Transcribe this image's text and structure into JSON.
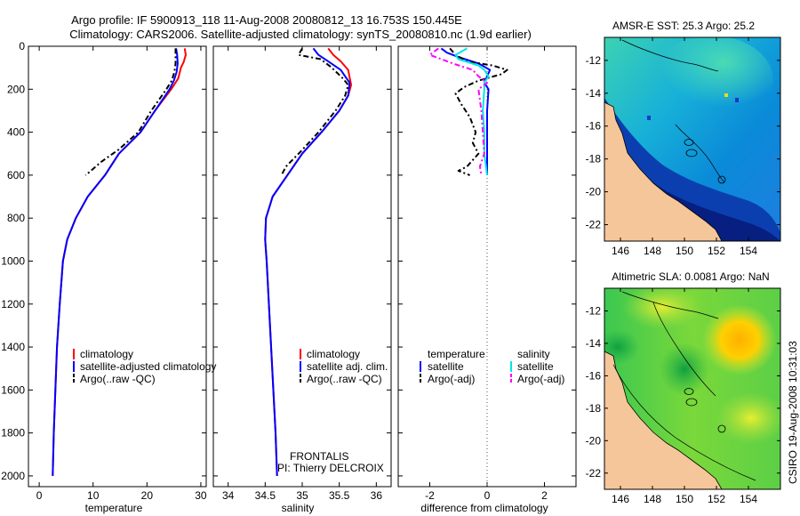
{
  "title_line1": "Argo profile: IF 5900913_118 11-Aug-2008 20080812_13 16.753S 150.445E",
  "title_line2": "Climatology: CARS2006. Satellite-adjusted climatology: synTS_20080810.nc (1.9d earlier)",
  "project_name": "FRONTALIS",
  "pi_name": "PI: Thierry DELCROIX",
  "side_stamp": "CSIRO 19-Aug-2008 10:31:03",
  "colors": {
    "red": "#ff0000",
    "blue": "#0000ff",
    "black": "#000000",
    "cyan": "#00e6e6",
    "magenta": "#ff00ff",
    "land": "#f5c69a"
  },
  "chart_data": [
    {
      "id": "temperature",
      "type": "line",
      "xlabel": "temperature",
      "xlim": [
        -2,
        31
      ],
      "ylim": [
        2050,
        0
      ],
      "xticks": [
        "0",
        "10",
        "20",
        "30"
      ],
      "xtick_values": [
        0,
        10,
        20,
        30
      ],
      "yticks": [
        "0",
        "200",
        "400",
        "600",
        "800",
        "1000",
        "1200",
        "1400",
        "1600",
        "1800",
        "2000"
      ],
      "legend": [
        "climatology",
        "satellite-adjusted climatology",
        "Argo(..raw -QC)"
      ],
      "series": [
        {
          "name": "climatology",
          "color": "red",
          "style": "solid",
          "points": [
            [
              27.0,
              10
            ],
            [
              27.2,
              40
            ],
            [
              26.8,
              75
            ],
            [
              26.3,
              100
            ],
            [
              25.8,
              150
            ],
            [
              24.5,
              200
            ],
            [
              21.5,
              300
            ],
            [
              18.8,
              400
            ],
            [
              14.8,
              500
            ],
            [
              12.2,
              600
            ],
            [
              9.0,
              700
            ],
            [
              6.8,
              800
            ],
            [
              5.2,
              900
            ],
            [
              4.4,
              1000
            ],
            [
              3.8,
              1200
            ],
            [
              3.3,
              1400
            ],
            [
              3.0,
              1600
            ],
            [
              2.7,
              1800
            ],
            [
              2.5,
              2000
            ]
          ]
        },
        {
          "name": "satellite-adjusted climatology",
          "color": "blue",
          "style": "solid",
          "points": [
            [
              25.4,
              10
            ],
            [
              25.6,
              40
            ],
            [
              25.7,
              80
            ],
            [
              25.5,
              120
            ],
            [
              25.0,
              160
            ],
            [
              24.2,
              200
            ],
            [
              21.5,
              300
            ],
            [
              18.8,
              400
            ],
            [
              14.8,
              500
            ],
            [
              12.2,
              600
            ],
            [
              9.0,
              700
            ],
            [
              6.8,
              800
            ],
            [
              5.2,
              900
            ],
            [
              4.4,
              1000
            ],
            [
              3.8,
              1200
            ],
            [
              3.3,
              1400
            ],
            [
              3.0,
              1600
            ],
            [
              2.7,
              1800
            ],
            [
              2.5,
              2000
            ]
          ]
        },
        {
          "name": "Argo(..raw -QC)",
          "color": "black",
          "style": "dashdot",
          "points": [
            [
              25.3,
              10
            ],
            [
              25.3,
              40
            ],
            [
              25.3,
              80
            ],
            [
              25.1,
              120
            ],
            [
              24.6,
              160
            ],
            [
              23.6,
              200
            ],
            [
              20.8,
              300
            ],
            [
              18.4,
              400
            ],
            [
              14.8,
              480
            ],
            [
              11.4,
              540
            ],
            [
              9.6,
              580
            ],
            [
              8.6,
              600
            ]
          ]
        }
      ]
    },
    {
      "id": "salinity",
      "type": "line",
      "xlabel": "salinity",
      "xlim": [
        33.8,
        36.2
      ],
      "ylim": [
        2050,
        0
      ],
      "xticks": [
        "34",
        "34.5",
        "35",
        "35.5",
        "36"
      ],
      "xtick_values": [
        34,
        34.5,
        35,
        35.5,
        36
      ],
      "legend": [
        "climatology",
        "satellite adj. clim.",
        "Argo(..raw -QC)"
      ],
      "series": [
        {
          "name": "climatology",
          "color": "red",
          "style": "solid",
          "points": [
            [
              35.35,
              10
            ],
            [
              35.42,
              40
            ],
            [
              35.52,
              70
            ],
            [
              35.62,
              110
            ],
            [
              35.66,
              180
            ],
            [
              35.62,
              230
            ],
            [
              35.5,
              300
            ],
            [
              35.26,
              400
            ],
            [
              35.0,
              500
            ],
            [
              34.8,
              600
            ],
            [
              34.6,
              700
            ],
            [
              34.51,
              800
            ],
            [
              34.5,
              900
            ],
            [
              34.52,
              1000
            ],
            [
              34.55,
              1200
            ],
            [
              34.58,
              1400
            ],
            [
              34.61,
              1600
            ],
            [
              34.64,
              1800
            ],
            [
              34.66,
              2000
            ]
          ]
        },
        {
          "name": "satellite adj. clim.",
          "color": "blue",
          "style": "solid",
          "points": [
            [
              35.15,
              10
            ],
            [
              35.22,
              40
            ],
            [
              35.35,
              70
            ],
            [
              35.52,
              110
            ],
            [
              35.64,
              170
            ],
            [
              35.62,
              230
            ],
            [
              35.5,
              300
            ],
            [
              35.26,
              400
            ],
            [
              35.0,
              500
            ],
            [
              34.8,
              600
            ],
            [
              34.6,
              700
            ],
            [
              34.51,
              800
            ],
            [
              34.5,
              900
            ],
            [
              34.52,
              1000
            ],
            [
              34.55,
              1200
            ],
            [
              34.58,
              1400
            ],
            [
              34.61,
              1600
            ],
            [
              34.64,
              1800
            ],
            [
              34.66,
              2000
            ]
          ]
        },
        {
          "name": "Argo(..raw -QC)",
          "color": "black",
          "style": "dashdot",
          "points": [
            [
              35.0,
              10
            ],
            [
              34.95,
              40
            ],
            [
              35.25,
              60
            ],
            [
              35.4,
              100
            ],
            [
              35.55,
              150
            ],
            [
              35.62,
              180
            ],
            [
              35.58,
              230
            ],
            [
              35.45,
              300
            ],
            [
              35.22,
              400
            ],
            [
              34.98,
              490
            ],
            [
              34.78,
              560
            ],
            [
              34.72,
              600
            ]
          ]
        }
      ]
    },
    {
      "id": "difference",
      "type": "line",
      "xlabel": "difference from climatology",
      "xlim": [
        -3.1,
        3.1
      ],
      "ylim": [
        2050,
        0
      ],
      "xticks": [
        "-2",
        "0",
        "2"
      ],
      "xtick_values": [
        -2,
        0,
        2
      ],
      "zero_line": 0,
      "legend_left_title": "temperature",
      "legend_right_title": "salinity",
      "legend": [
        "satellite",
        "Argo(-adj)",
        "satellite",
        "Argo(-adj)"
      ],
      "series": [
        {
          "name": "temperature satellite",
          "color": "blue",
          "style": "solid",
          "points": [
            [
              -1.6,
              10
            ],
            [
              -1.4,
              30
            ],
            [
              -1.0,
              50
            ],
            [
              -0.3,
              80
            ],
            [
              0.1,
              110
            ],
            [
              0.0,
              140
            ],
            [
              -0.1,
              170
            ],
            [
              0.05,
              200
            ],
            [
              0.0,
              300
            ],
            [
              0.0,
              400
            ],
            [
              0.0,
              500
            ],
            [
              0.0,
              600
            ]
          ]
        },
        {
          "name": "temperature Argo(-adj)",
          "color": "black",
          "style": "dashdot",
          "points": [
            [
              -1.3,
              10
            ],
            [
              -1.1,
              40
            ],
            [
              -0.7,
              70
            ],
            [
              0.2,
              90
            ],
            [
              0.7,
              110
            ],
            [
              0.5,
              130
            ],
            [
              -0.3,
              160
            ],
            [
              -0.8,
              190
            ],
            [
              -1.1,
              220
            ],
            [
              -0.9,
              270
            ],
            [
              -0.6,
              330
            ],
            [
              -0.4,
              400
            ],
            [
              -0.5,
              450
            ],
            [
              -0.3,
              500
            ],
            [
              -0.7,
              560
            ],
            [
              -1.0,
              580
            ],
            [
              -0.6,
              600
            ]
          ]
        },
        {
          "name": "salinity satellite",
          "color": "cyan",
          "style": "solid",
          "points": [
            [
              -0.7,
              10
            ],
            [
              -1.1,
              40
            ],
            [
              -1.0,
              60
            ],
            [
              -0.3,
              90
            ],
            [
              -0.1,
              110
            ],
            [
              0.05,
              140
            ],
            [
              -0.1,
              170
            ],
            [
              -0.1,
              200
            ],
            [
              -0.15,
              300
            ],
            [
              -0.1,
              400
            ],
            [
              -0.1,
              500
            ],
            [
              0.0,
              600
            ]
          ]
        },
        {
          "name": "salinity Argo(-adj)",
          "color": "magenta",
          "style": "dashdot",
          "points": [
            [
              -1.7,
              10
            ],
            [
              -2.0,
              40
            ],
            [
              -1.6,
              60
            ],
            [
              -1.2,
              80
            ],
            [
              -0.5,
              110
            ],
            [
              -0.3,
              140
            ],
            [
              0.0,
              170
            ],
            [
              -0.3,
              200
            ],
            [
              -0.2,
              300
            ],
            [
              -0.15,
              400
            ],
            [
              -0.1,
              500
            ],
            [
              -0.25,
              560
            ],
            [
              -0.2,
              600
            ]
          ]
        }
      ]
    },
    {
      "id": "amsr_sst_map",
      "type": "heatmap",
      "title": "AMSR-E SST: 25.3 Argo: 25.2",
      "xticks": [
        "146",
        "148",
        "150",
        "152",
        "154"
      ],
      "xtick_values": [
        146,
        148,
        150,
        152,
        154
      ],
      "yticks": [
        "-12",
        "-14",
        "-16",
        "-18",
        "-20",
        "-22"
      ],
      "ytick_values": [
        -12,
        -14,
        -16,
        -18,
        -20,
        -22
      ],
      "xlim": [
        145,
        156
      ],
      "ylim": [
        -23,
        -10.6
      ],
      "float_position": [
        150.445,
        -16.753
      ]
    },
    {
      "id": "altimetric_sla_map",
      "type": "heatmap",
      "title": "Altimetric SLA: 0.0081 Argo: NaN",
      "xticks": [
        "146",
        "148",
        "150",
        "152",
        "154"
      ],
      "xtick_values": [
        146,
        148,
        150,
        152,
        154
      ],
      "yticks": [
        "-12",
        "-14",
        "-16",
        "-18",
        "-20",
        "-22"
      ],
      "ytick_values": [
        -12,
        -14,
        -16,
        -18,
        -20,
        -22
      ],
      "xlim": [
        145,
        156
      ],
      "ylim": [
        -23,
        -10.6
      ],
      "float_position": [
        150.445,
        -16.753
      ]
    }
  ]
}
